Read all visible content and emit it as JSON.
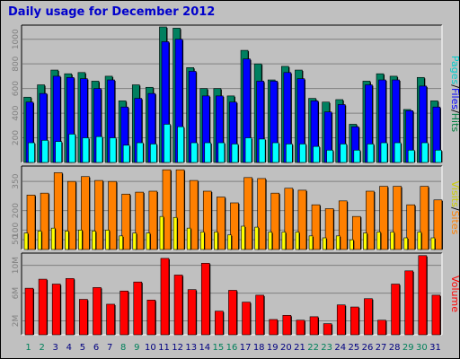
{
  "title": "Daily usage for December 2012",
  "chart_data": [
    {
      "type": "bar",
      "name": "hits-files-pages",
      "side_label": [
        {
          "text": "Pages",
          "color": "#00cccc"
        },
        {
          "text": "/",
          "color": "#000000"
        },
        {
          "text": "Files",
          "color": "#0000ff"
        },
        {
          "text": "/",
          "color": "#000000"
        },
        {
          "text": "Hits",
          "color": "#008040"
        }
      ],
      "ylim": [
        0,
        1100
      ],
      "yticks": [
        200,
        400,
        600,
        800,
        1000
      ],
      "categories": [
        "1",
        "2",
        "3",
        "4",
        "5",
        "6",
        "7",
        "8",
        "9",
        "10",
        "11",
        "12",
        "13",
        "14",
        "15",
        "16",
        "17",
        "18",
        "19",
        "20",
        "21",
        "22",
        "23",
        "24",
        "25",
        "26",
        "27",
        "28",
        "29",
        "30",
        "31"
      ],
      "weekend_days": [
        "1",
        "2",
        "8",
        "9",
        "15",
        "16",
        "22",
        "23",
        "29",
        "30"
      ],
      "series": [
        {
          "name": "Hits",
          "color": "#008060",
          "values": [
            530,
            630,
            750,
            720,
            730,
            660,
            700,
            500,
            630,
            610,
            1100,
            1090,
            770,
            600,
            600,
            540,
            910,
            800,
            670,
            780,
            750,
            520,
            490,
            510,
            310,
            660,
            720,
            700,
            430,
            690,
            500
          ]
        },
        {
          "name": "Files",
          "color": "#0000ff",
          "values": [
            490,
            560,
            700,
            690,
            680,
            600,
            670,
            450,
            520,
            560,
            980,
            1000,
            740,
            540,
            540,
            490,
            840,
            660,
            660,
            730,
            680,
            500,
            410,
            470,
            290,
            630,
            670,
            670,
            420,
            620,
            450
          ]
        },
        {
          "name": "Pages",
          "color": "#00ffff",
          "values": [
            160,
            180,
            170,
            230,
            200,
            210,
            200,
            140,
            160,
            150,
            310,
            290,
            160,
            160,
            160,
            150,
            200,
            190,
            160,
            150,
            150,
            130,
            100,
            150,
            100,
            150,
            160,
            160,
            100,
            160,
            100
          ]
        }
      ]
    },
    {
      "type": "bar",
      "name": "visits-sites",
      "side_label": [
        {
          "text": "Visits",
          "color": "#cccc00"
        },
        {
          "text": "/",
          "color": "#000000"
        },
        {
          "text": "Sites",
          "color": "#ff8000"
        }
      ],
      "ylim": [
        0,
        420
      ],
      "yticks": [
        50,
        100,
        200,
        350
      ],
      "series": [
        {
          "name": "Sites",
          "color": "#ff8000",
          "values": [
            280,
            290,
            395,
            350,
            375,
            355,
            350,
            285,
            295,
            300,
            410,
            410,
            355,
            300,
            270,
            240,
            370,
            365,
            290,
            315,
            305,
            230,
            210,
            250,
            170,
            300,
            325,
            325,
            230,
            325,
            255
          ]
        },
        {
          "name": "Visits",
          "color": "#ffff00",
          "values": [
            85,
            95,
            110,
            95,
            100,
            95,
            100,
            70,
            85,
            85,
            170,
            165,
            110,
            90,
            90,
            75,
            120,
            115,
            90,
            90,
            90,
            70,
            60,
            70,
            50,
            85,
            90,
            90,
            60,
            90,
            60
          ]
        }
      ]
    },
    {
      "type": "bar",
      "name": "volume",
      "side_label": [
        {
          "text": "Volume",
          "color": "#ff0000"
        }
      ],
      "ylim": [
        0,
        11500000
      ],
      "yticks": [
        2000000,
        6000000,
        10000000
      ],
      "ytick_labels": [
        "2M",
        "6M",
        "10M"
      ],
      "series": [
        {
          "name": "Volume",
          "color": "#ff0000",
          "values": [
            6700000,
            8000000,
            7300000,
            8100000,
            5100000,
            6800000,
            4400000,
            6300000,
            7600000,
            5000000,
            11000000,
            8600000,
            6500000,
            10300000,
            3400000,
            6400000,
            4700000,
            5700000,
            2200000,
            2800000,
            2100000,
            2600000,
            1600000,
            4300000,
            4000000,
            5200000,
            2100000,
            7300000,
            9200000,
            11400000,
            5700000
          ]
        }
      ]
    }
  ]
}
